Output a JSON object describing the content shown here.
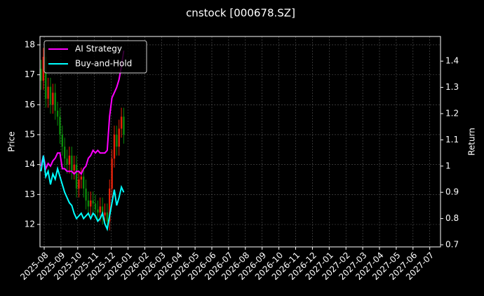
{
  "chart_data": {
    "type": "candlestick",
    "title": "cnstock [000678.SZ]",
    "ylabel": "Price",
    "y2label": "Return",
    "ylim": [
      11.25,
      18.28
    ],
    "yticks": [
      12,
      13,
      14,
      15,
      16,
      17,
      18
    ],
    "y2lim": [
      0.692,
      1.494
    ],
    "y2ticks": [
      0.7,
      0.8,
      0.9,
      1.0,
      1.1,
      1.2,
      1.3,
      1.4
    ],
    "xticks": [
      "2025-08",
      "2025-09",
      "2025-10",
      "2025-11",
      "2025-12",
      "2026-01",
      "2026-02",
      "2026-03",
      "2026-04",
      "2026-05",
      "2026-06",
      "2026-07",
      "2026-08",
      "2026-09",
      "2026-10",
      "2026-11",
      "2026-12",
      "2027-01",
      "2027-02",
      "2027-03",
      "2027-04",
      "2027-05",
      "2027-06",
      "2027-07"
    ],
    "grid": true,
    "legend": "upper left",
    "up_color": "#e8220a",
    "down_color": "#0a8a0a",
    "open": [
      17.2,
      16.8,
      17.6,
      16.2,
      16.6,
      16.0,
      16.4,
      15.8,
      15.6,
      15.0,
      14.6,
      14.2,
      14.0,
      14.3,
      13.8,
      14.0,
      13.2,
      13.5,
      13.6,
      13.2,
      12.8,
      12.6,
      12.8,
      12.7,
      12.5,
      12.4,
      12.6,
      12.3,
      12.4,
      12.1,
      13.2,
      14.2,
      15.0,
      14.6,
      15.2,
      15.6
    ],
    "high": [
      17.5,
      17.9,
      17.9,
      16.9,
      16.9,
      16.7,
      16.7,
      16.1,
      15.9,
      15.3,
      14.9,
      14.5,
      14.6,
      14.6,
      14.3,
      14.3,
      13.8,
      13.9,
      13.9,
      13.5,
      13.1,
      13.1,
      13.1,
      13.0,
      12.8,
      12.9,
      12.9,
      12.7,
      12.7,
      13.5,
      14.5,
      15.3,
      15.3,
      15.5,
      15.9,
      15.9
    ],
    "low": [
      16.5,
      16.5,
      15.9,
      15.9,
      15.7,
      15.7,
      15.5,
      15.3,
      14.7,
      14.3,
      13.9,
      13.7,
      13.7,
      13.5,
      13.5,
      12.9,
      12.9,
      13.2,
      12.9,
      12.5,
      12.3,
      12.3,
      12.4,
      12.2,
      12.1,
      12.1,
      12.0,
      12.0,
      11.8,
      11.8,
      12.9,
      13.9,
      14.3,
      14.3,
      14.9,
      14.7
    ],
    "close": [
      16.8,
      17.6,
      16.2,
      16.6,
      16.0,
      16.4,
      15.8,
      15.6,
      15.0,
      14.6,
      14.2,
      14.0,
      14.3,
      13.8,
      14.0,
      13.2,
      13.5,
      13.6,
      13.2,
      12.8,
      12.6,
      12.8,
      12.7,
      12.5,
      12.4,
      12.6,
      12.3,
      12.4,
      12.1,
      13.2,
      14.2,
      15.0,
      14.6,
      15.2,
      15.6,
      15.0
    ],
    "series": [
      {
        "name": "AI Strategy",
        "color": "#ff00ff",
        "axis": "y2",
        "values": [
          1.0,
          1.04,
          0.99,
          1.01,
          1.0,
          1.02,
          1.03,
          1.05,
          1.05,
          0.99,
          0.99,
          0.98,
          0.98,
          0.98,
          0.97,
          0.98,
          0.98,
          0.97,
          0.99,
          1.0,
          1.03,
          1.04,
          1.06,
          1.05,
          1.06,
          1.05,
          1.05,
          1.05,
          1.06,
          1.19,
          1.26,
          1.28,
          1.3,
          1.33,
          1.38,
          1.44
        ]
      },
      {
        "name": "Buy-and-Hold",
        "color": "#00ffff",
        "axis": "y2",
        "values": [
          0.98,
          1.04,
          0.96,
          0.98,
          0.93,
          0.97,
          0.95,
          0.99,
          0.96,
          0.93,
          0.9,
          0.88,
          0.86,
          0.85,
          0.82,
          0.8,
          0.81,
          0.82,
          0.8,
          0.81,
          0.82,
          0.8,
          0.82,
          0.81,
          0.79,
          0.8,
          0.82,
          0.78,
          0.76,
          0.81,
          0.86,
          0.91,
          0.85,
          0.88,
          0.92,
          0.9
        ]
      }
    ]
  }
}
